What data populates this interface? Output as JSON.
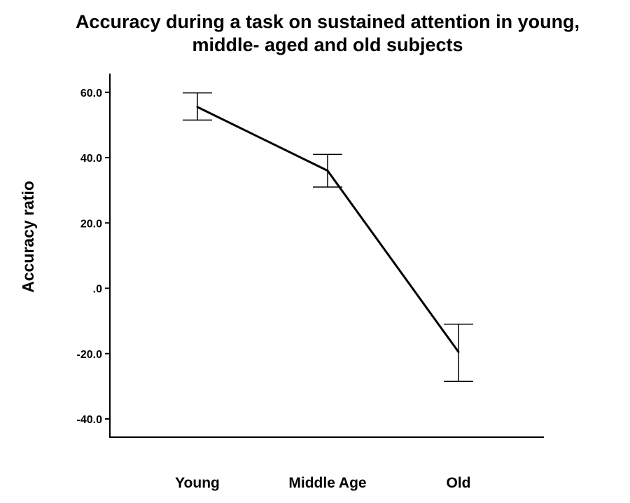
{
  "chart_data": {
    "type": "line",
    "title_lines": [
      "Accuracy during a task on sustained attention in young,",
      "middle- aged and old subjects"
    ],
    "xlabel": "",
    "ylabel": "Accuracy ratio",
    "categories": [
      "Young",
      "Middle Age",
      "Old"
    ],
    "series": [
      {
        "values": [
          55.5,
          36.0,
          -19.5
        ],
        "error_low": [
          51.5,
          31.0,
          -28.5
        ],
        "error_high": [
          59.8,
          41.0,
          -11.0
        ]
      }
    ],
    "ylim": [
      -45,
      65
    ],
    "yticks": [
      60,
      40,
      20,
      0,
      -20,
      -40
    ],
    "ytick_labels": [
      "60.0",
      "40.0",
      "20.0",
      ".0",
      "-20.0",
      "-40.0"
    ],
    "grid": false,
    "legend": "none",
    "line_color": "#000000"
  }
}
